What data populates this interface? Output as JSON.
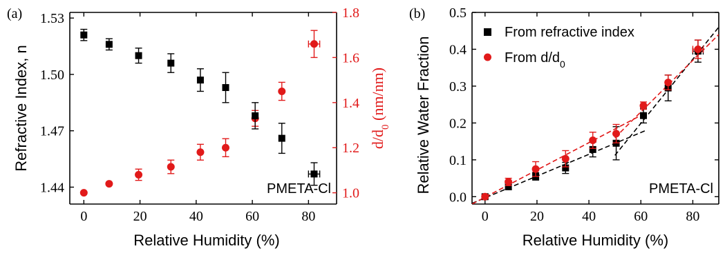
{
  "chart_data": [
    {
      "panel": "(a)",
      "type": "scatter",
      "xlabel": "Relative Humidity (%)",
      "ylabel": "Refractive Index, n",
      "y2label": "d/d0 (nm/nm)",
      "xlim": [
        -5,
        90
      ],
      "xticks": [
        0,
        20,
        40,
        60,
        80
      ],
      "ylim": [
        1.431,
        1.533
      ],
      "yticks": [
        1.44,
        1.47,
        1.5,
        1.53
      ],
      "y2lim": [
        0.95,
        1.8
      ],
      "y2ticks": [
        1.0,
        1.2,
        1.4,
        1.6,
        1.8
      ],
      "annotation": "PMETA-Cl",
      "series": [
        {
          "color": "#000000",
          "marker": "square",
          "axis": "left",
          "x": [
            0,
            9,
            19.5,
            31,
            41.5,
            50.5,
            61,
            70.5,
            82
          ],
          "y": [
            1.521,
            1.516,
            1.51,
            1.506,
            1.497,
            1.493,
            1.478,
            1.466,
            1.447
          ],
          "yerr": [
            0.003,
            0.003,
            0.004,
            0.005,
            0.006,
            0.008,
            0.007,
            0.008,
            0.006
          ],
          "xerr": [
            0,
            0,
            0,
            0,
            0,
            0,
            0,
            0,
            2
          ]
        },
        {
          "color": "#e11a1a",
          "marker": "circle",
          "axis": "right",
          "x": [
            0,
            9,
            19.5,
            31,
            41.5,
            50.5,
            61,
            70.5,
            82
          ],
          "y": [
            1.0,
            1.04,
            1.08,
            1.115,
            1.18,
            1.2,
            1.33,
            1.45,
            1.66
          ],
          "yerr": [
            0,
            0,
            0.025,
            0.03,
            0.035,
            0.04,
            0.035,
            0.04,
            0.06
          ],
          "xerr": [
            0,
            0,
            0,
            0,
            0,
            0,
            0,
            0,
            2
          ]
        }
      ]
    },
    {
      "panel": "(b)",
      "type": "scatter",
      "xlabel": "Relative Humidity (%)",
      "ylabel": "Relative Water Fraction",
      "xlim": [
        -5,
        90
      ],
      "xticks": [
        0,
        20,
        40,
        60,
        80
      ],
      "ylim": [
        -0.02,
        0.5
      ],
      "yticks": [
        0.0,
        0.1,
        0.2,
        0.3,
        0.4,
        0.5
      ],
      "annotation": "PMETA-Cl",
      "legend_position": "top-left",
      "series": [
        {
          "name": "From refractive index",
          "color": "#000000",
          "marker": "square",
          "x": [
            0,
            9,
            19.5,
            31,
            41.5,
            50.5,
            61,
            70.5,
            82
          ],
          "y": [
            0.0,
            0.027,
            0.055,
            0.078,
            0.128,
            0.145,
            0.22,
            0.295,
            0.395
          ],
          "yerr": [
            0.005,
            0.008,
            0.01,
            0.015,
            0.02,
            0.045,
            0.02,
            0.035,
            0.03
          ],
          "xerr": [
            0,
            0,
            0,
            0,
            0,
            0,
            0,
            0,
            2
          ]
        },
        {
          "name": "From d/d0",
          "color": "#e11a1a",
          "marker": "circle",
          "x": [
            0,
            9,
            19.5,
            31,
            41.5,
            50.5,
            61,
            70.5,
            82
          ],
          "y": [
            0.0,
            0.04,
            0.075,
            0.103,
            0.153,
            0.171,
            0.247,
            0.31,
            0.4
          ],
          "yerr": [
            0.005,
            0.01,
            0.02,
            0.022,
            0.022,
            0.025,
            0.01,
            0.02,
            0.025
          ],
          "xerr": [
            0,
            0,
            0,
            0,
            0,
            0,
            0,
            0,
            2
          ]
        }
      ],
      "fit_lines": [
        {
          "color": "#000000",
          "x": [
            -5,
            62
          ],
          "y": [
            -0.018,
            0.18
          ]
        },
        {
          "color": "#000000",
          "x": [
            50,
            90
          ],
          "y": [
            0.112,
            0.46
          ]
        },
        {
          "color": "#e11a1a",
          "x": [
            -5,
            62
          ],
          "y": [
            -0.02,
            0.228
          ]
        },
        {
          "color": "#e11a1a",
          "x": [
            50,
            90
          ],
          "y": [
            0.16,
            0.44
          ]
        }
      ]
    }
  ]
}
